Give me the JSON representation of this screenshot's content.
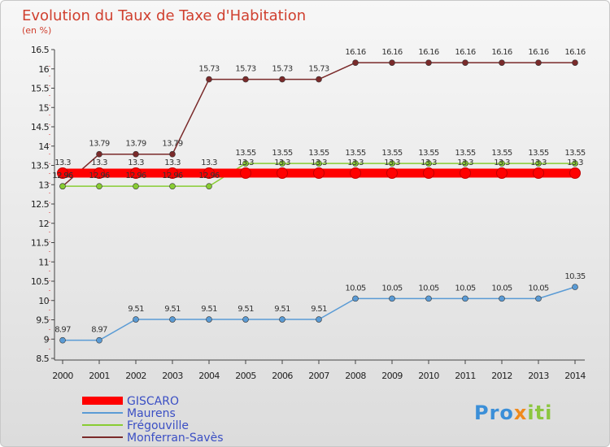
{
  "chart_data": {
    "type": "line",
    "title": "Evolution du Taux de Taxe d'Habitation",
    "subtitle": "(en %)",
    "xlabel": "",
    "ylabel": "(en %)",
    "categories": [
      "2000",
      "2001",
      "2002",
      "2003",
      "2004",
      "2005",
      "2006",
      "2007",
      "2008",
      "2009",
      "2010",
      "2011",
      "2012",
      "2013",
      "2014"
    ],
    "ylim": [
      8.5,
      16.5
    ],
    "yticks": [
      8.5,
      9,
      9.5,
      10,
      10.5,
      11,
      11.5,
      12,
      12.5,
      13,
      13.5,
      14,
      14.5,
      15,
      15.5,
      16,
      16.5
    ],
    "ytick_labels": [
      "8.5",
      "9",
      "9.5",
      "10",
      "10.5",
      "11",
      "11.5",
      "12",
      "12.5",
      "13",
      "13.5",
      "14",
      "14.5",
      "15",
      "15.5",
      "16",
      "16.5"
    ],
    "grid": false,
    "legend_position": "bottom-left",
    "series": [
      {
        "name": "GISCARO",
        "color": "#ff0000",
        "values": [
          13.3,
          13.3,
          13.3,
          13.3,
          13.3,
          13.3,
          13.3,
          13.3,
          13.3,
          13.3,
          13.3,
          13.3,
          13.3,
          13.3,
          13.3
        ],
        "labels": [
          "13.3",
          "13.3",
          "13.3",
          "13.3",
          "13.3",
          "13.3",
          "13.3",
          "13.3",
          "13.3",
          "13.3",
          "13.3",
          "13.3",
          "13.3",
          "13.3",
          "13.3"
        ]
      },
      {
        "name": "Maurens",
        "color": "#5a9bd5",
        "values": [
          8.97,
          8.97,
          9.51,
          9.51,
          9.51,
          9.51,
          9.51,
          9.51,
          10.05,
          10.05,
          10.05,
          10.05,
          10.05,
          10.05,
          10.35
        ],
        "labels": [
          "8.97",
          "8.97",
          "9.51",
          "9.51",
          "9.51",
          "9.51",
          "9.51",
          "9.51",
          "10.05",
          "10.05",
          "10.05",
          "10.05",
          "10.05",
          "10.05",
          "10.35"
        ]
      },
      {
        "name": "Frégouville",
        "color": "#88cc33",
        "values": [
          12.96,
          12.96,
          12.96,
          12.96,
          12.96,
          13.55,
          13.55,
          13.55,
          13.55,
          13.55,
          13.55,
          13.55,
          13.55,
          13.55,
          13.55
        ],
        "labels": [
          "12.96",
          "12.96",
          "12.96",
          "12.96",
          "12.96",
          "13.55",
          "13.55",
          "13.55",
          "13.55",
          "13.55",
          "13.55",
          "13.55",
          "13.55",
          "13.55",
          "13.55"
        ]
      },
      {
        "name": "Monferran-Savès",
        "color": "#7a2a2a",
        "values": [
          12.96,
          13.79,
          13.79,
          13.79,
          15.73,
          15.73,
          15.73,
          15.73,
          16.16,
          16.16,
          16.16,
          16.16,
          16.16,
          16.16,
          16.16
        ],
        "labels": [
          "12.96",
          "13.79",
          "13.79",
          "13.79",
          "15.73",
          "15.73",
          "15.73",
          "15.73",
          "16.16",
          "16.16",
          "16.16",
          "16.16",
          "16.16",
          "16.16",
          "16.16"
        ]
      }
    ]
  },
  "logo": {
    "part1": "Pro",
    "part2": "x",
    "part3": "iti"
  }
}
